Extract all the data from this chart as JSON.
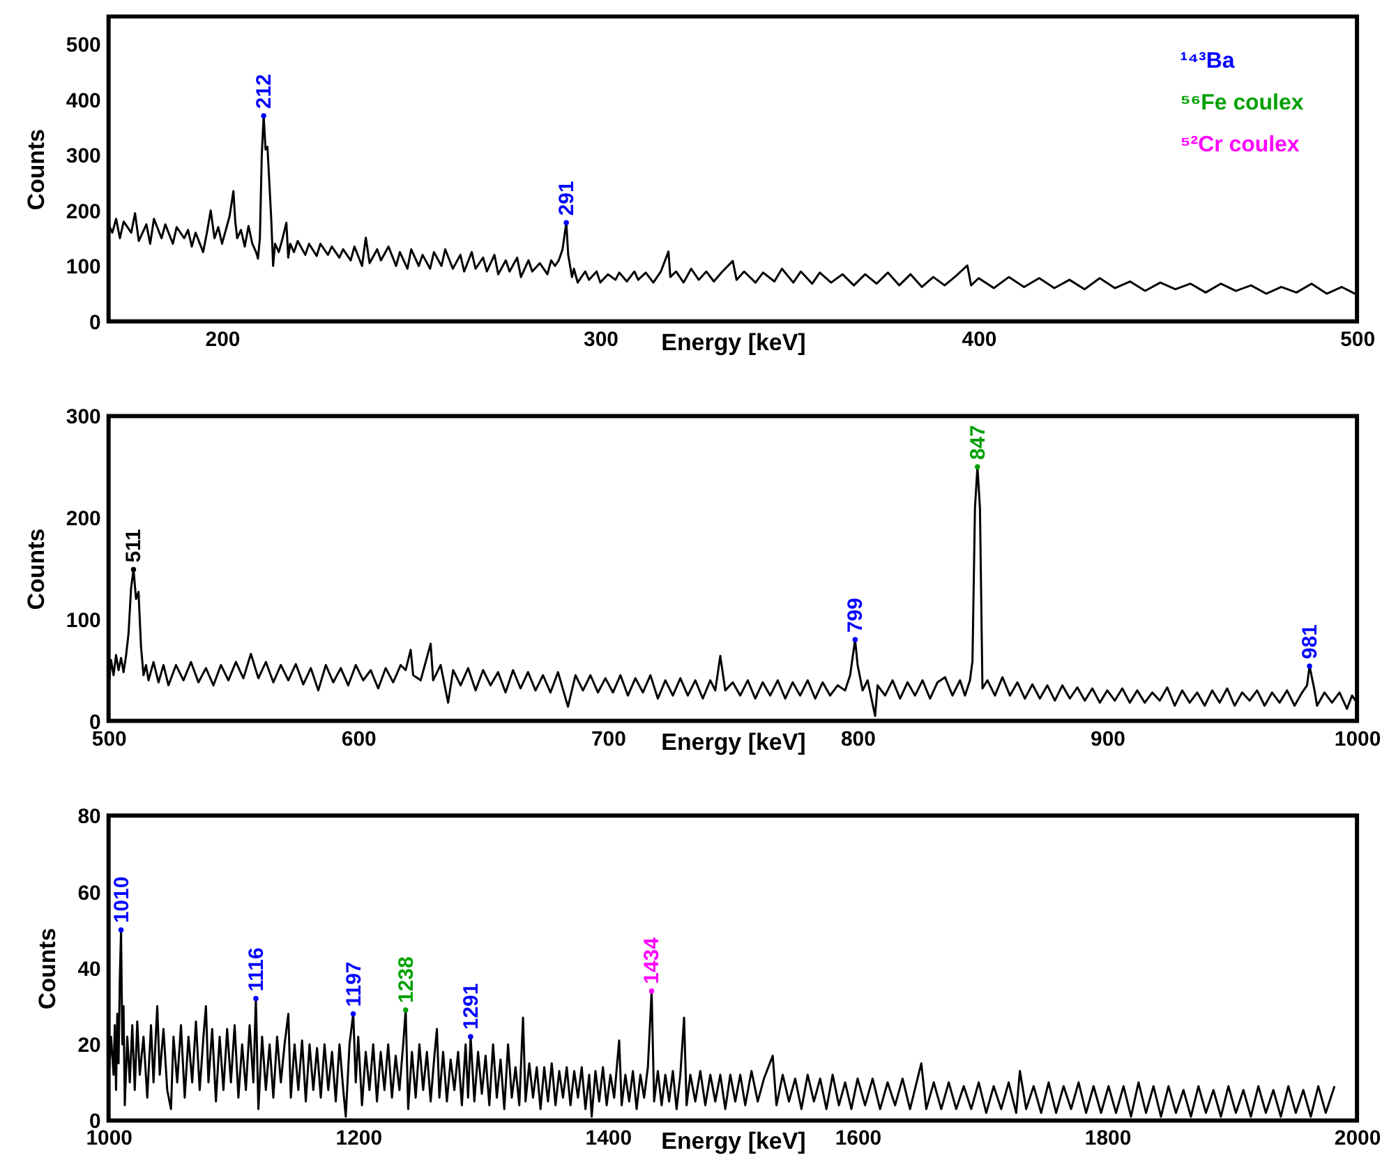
{
  "chart_data": [
    {
      "type": "line",
      "xlabel": "Energy [keV]",
      "ylabel": "Counts",
      "xlim": [
        170,
        500
      ],
      "ylim": [
        0,
        550
      ],
      "xticks": [
        200,
        300,
        400,
        500
      ],
      "yticks": [
        0,
        100,
        200,
        300,
        400,
        500
      ],
      "series": [
        {
          "color": "#000000",
          "x": [
            170,
            171,
            172,
            173,
            174,
            176,
            177,
            178,
            180,
            181,
            182,
            184,
            185,
            187,
            188,
            190,
            191,
            192,
            193,
            195,
            196,
            197,
            198,
            199,
            200,
            201,
            202,
            203,
            203.5,
            204,
            205,
            206,
            207,
            208,
            209,
            209.5,
            210,
            210.5,
            211,
            211.5,
            212,
            213,
            213.5,
            214,
            215,
            216,
            217,
            217.5,
            218,
            219,
            220,
            222,
            223,
            225,
            226,
            228,
            229,
            231,
            232,
            234,
            235,
            237,
            238,
            239,
            241,
            242,
            244,
            246,
            247,
            249,
            250,
            252,
            253,
            255,
            256,
            258,
            259,
            261,
            263,
            264,
            266,
            267,
            269,
            270,
            272,
            273,
            275,
            276,
            278,
            279,
            281,
            282,
            284,
            286,
            287,
            288,
            289,
            290,
            291,
            291.5,
            292.5,
            293,
            294,
            296,
            297,
            299,
            300,
            302,
            304,
            305,
            307,
            309,
            310,
            312,
            314,
            316,
            318,
            318.5,
            320,
            322,
            324,
            326,
            328,
            330,
            332,
            335,
            336,
            338,
            341,
            343,
            346,
            348,
            351,
            353,
            356,
            358,
            361,
            364,
            367,
            370,
            373,
            376,
            379,
            382,
            385,
            388,
            391,
            394,
            397,
            398,
            400,
            404,
            408,
            412,
            416,
            420,
            424,
            428,
            432,
            436,
            440,
            444,
            448,
            452,
            456,
            460,
            464,
            468,
            472,
            476,
            480,
            484,
            488,
            492,
            496,
            500
          ],
          "values": [
            175,
            160,
            185,
            150,
            180,
            160,
            195,
            145,
            175,
            140,
            185,
            150,
            175,
            140,
            170,
            150,
            165,
            135,
            160,
            125,
            160,
            200,
            150,
            170,
            140,
            165,
            190,
            235,
            180,
            150,
            165,
            135,
            172,
            140,
            125,
            113,
            150,
            300,
            371,
            310,
            315,
            185,
            100,
            140,
            125,
            150,
            178,
            115,
            140,
            125,
            145,
            120,
            140,
            118,
            140,
            120,
            135,
            115,
            130,
            110,
            135,
            100,
            151,
            105,
            130,
            110,
            135,
            100,
            125,
            95,
            130,
            100,
            120,
            95,
            125,
            100,
            130,
            95,
            120,
            90,
            125,
            95,
            115,
            90,
            120,
            85,
            110,
            90,
            115,
            80,
            110,
            90,
            105,
            85,
            110,
            100,
            110,
            130,
            178,
            120,
            80,
            95,
            70,
            90,
            75,
            90,
            70,
            85,
            75,
            88,
            72,
            90,
            75,
            88,
            70,
            90,
            126,
            80,
            90,
            70,
            95,
            75,
            90,
            72,
            88,
            109,
            75,
            90,
            70,
            88,
            72,
            95,
            70,
            90,
            68,
            88,
            70,
            85,
            65,
            85,
            68,
            88,
            65,
            85,
            62,
            80,
            65,
            82,
            101,
            65,
            78,
            60,
            80,
            62,
            78,
            60,
            75,
            58,
            78,
            60,
            72,
            55,
            70,
            58,
            68,
            52,
            68,
            55,
            65,
            50,
            62,
            52,
            68,
            50,
            62,
            48
          ]
        },
        {
          "name": "¹⁴³Ba",
          "type": "scatter",
          "marker": "circle",
          "color": "#0000ff",
          "x": [
            211,
            291
          ],
          "values": [
            371,
            178
          ]
        },
        {
          "name": "⁵⁶Fe coulex",
          "type": "scatter",
          "marker": "circle",
          "color": "#00a000"
        },
        {
          "name": "⁵²Cr coulex",
          "type": "scatter",
          "marker": "circle",
          "color": "#ff00ff"
        }
      ],
      "annotations": [
        {
          "text": "212",
          "x": 211,
          "y": 371
        },
        {
          "text": "291",
          "x": 291,
          "y": 178
        }
      ]
    },
    {
      "type": "line",
      "xlabel": "Energy [keV]",
      "ylabel": "Counts",
      "xlim": [
        500,
        1000
      ],
      "ylim": [
        0,
        300
      ],
      "xticks": [
        500,
        600,
        700,
        800,
        900,
        1000
      ],
      "yticks": [
        0,
        100,
        200,
        300
      ],
      "series": [
        {
          "color": "#000000",
          "x": [
            500,
            501,
            502,
            503,
            504,
            505,
            506,
            507,
            508,
            509,
            510,
            511,
            512,
            513,
            514,
            515,
            516,
            518,
            520,
            522,
            524,
            527,
            530,
            533,
            536,
            539,
            542,
            545,
            548,
            551,
            554,
            557,
            560,
            563,
            566,
            569,
            572,
            575,
            578,
            581,
            584,
            587,
            590,
            593,
            596,
            599,
            602,
            605,
            608,
            611,
            614,
            617,
            619,
            621,
            622,
            625,
            629,
            630,
            633,
            636,
            638,
            641,
            644,
            647,
            650,
            653,
            656,
            659,
            662,
            665,
            668,
            671,
            674,
            677,
            680,
            684,
            687,
            690,
            693,
            696,
            699,
            702,
            705,
            708,
            711,
            714,
            717,
            720,
            723,
            726,
            729,
            732,
            735,
            738,
            741,
            743,
            745,
            747,
            750,
            753,
            756,
            759,
            762,
            765,
            768,
            771,
            774,
            777,
            780,
            783,
            786,
            789,
            792,
            795,
            797,
            799,
            800,
            802,
            804,
            807,
            808,
            811,
            814,
            817,
            820,
            823,
            826,
            829,
            832,
            835,
            838,
            841,
            843,
            845,
            846,
            847,
            848,
            849,
            850,
            852,
            855,
            858,
            861,
            864,
            867,
            870,
            873,
            876,
            879,
            882,
            885,
            888,
            891,
            894,
            897,
            900,
            903,
            906,
            909,
            912,
            915,
            918,
            921,
            924,
            927,
            930,
            933,
            936,
            939,
            942,
            945,
            948,
            951,
            954,
            957,
            960,
            963,
            966,
            969,
            972,
            975,
            978,
            980,
            981,
            983,
            984,
            987,
            990,
            993,
            996,
            998,
            1000
          ],
          "values": [
            32,
            60,
            45,
            65,
            50,
            62,
            48,
            64,
            86,
            130,
            149,
            120,
            127,
            73,
            45,
            55,
            40,
            58,
            38,
            55,
            35,
            55,
            40,
            58,
            38,
            52,
            35,
            55,
            40,
            58,
            42,
            66,
            42,
            58,
            38,
            55,
            40,
            56,
            36,
            52,
            30,
            55,
            38,
            52,
            35,
            55,
            40,
            50,
            32,
            52,
            38,
            55,
            50,
            70,
            45,
            40,
            76,
            40,
            55,
            18,
            50,
            35,
            52,
            30,
            50,
            35,
            48,
            28,
            50,
            32,
            48,
            30,
            45,
            28,
            48,
            14,
            45,
            30,
            45,
            28,
            42,
            28,
            45,
            25,
            42,
            28,
            45,
            22,
            40,
            25,
            42,
            25,
            40,
            22,
            40,
            30,
            64,
            30,
            38,
            25,
            40,
            22,
            38,
            25,
            40,
            22,
            38,
            25,
            40,
            22,
            38,
            25,
            35,
            30,
            45,
            80,
            55,
            30,
            40,
            5,
            35,
            25,
            40,
            22,
            38,
            25,
            40,
            22,
            38,
            43,
            25,
            40,
            25,
            40,
            59,
            210,
            250,
            209,
            32,
            40,
            25,
            43,
            25,
            38,
            22,
            36,
            22,
            35,
            20,
            35,
            22,
            33,
            20,
            32,
            18,
            30,
            20,
            32,
            18,
            30,
            18,
            28,
            20,
            33,
            15,
            30,
            18,
            28,
            15,
            30,
            18,
            32,
            15,
            28,
            20,
            30,
            15,
            28,
            18,
            30,
            15,
            28,
            35,
            54,
            30,
            15,
            28,
            18,
            28,
            12,
            25,
            18
          ]
        },
        {
          "type": "scatter",
          "marker": "circle",
          "color": "#000000",
          "x": [
            510
          ],
          "values": [
            149
          ]
        },
        {
          "type": "scatter",
          "marker": "circle",
          "color": "#0000ff",
          "x": [
            799,
            981
          ],
          "values": [
            80,
            54
          ]
        },
        {
          "type": "scatter",
          "marker": "circle",
          "color": "#00a000",
          "x": [
            848
          ],
          "values": [
            250
          ]
        }
      ],
      "annotations": [
        {
          "text": "511",
          "x": 510,
          "y": 149
        },
        {
          "text": "799",
          "x": 799,
          "y": 80
        },
        {
          "text": "847",
          "x": 848,
          "y": 250
        },
        {
          "text": "981",
          "x": 981,
          "y": 54
        }
      ]
    },
    {
      "type": "line",
      "xlabel": "Energy [keV]",
      "ylabel": "Counts",
      "xlim": [
        1000,
        2000
      ],
      "ylim": [
        0,
        80
      ],
      "xticks": [
        1000,
        1200,
        1400,
        1600,
        1800,
        2000
      ],
      "yticks": [
        0,
        20,
        40,
        60,
        80
      ],
      "series": [
        {
          "color": "#000000",
          "x": [
            1000,
            1002,
            1004,
            1005,
            1006,
            1007,
            1008,
            1009,
            1010,
            1011,
            1012,
            1013,
            1015,
            1017,
            1019,
            1021,
            1023,
            1025,
            1028,
            1031,
            1034,
            1036,
            1039,
            1041,
            1044,
            1047,
            1050,
            1052,
            1055,
            1058,
            1061,
            1064,
            1067,
            1070,
            1073,
            1076,
            1078,
            1080,
            1083,
            1086,
            1089,
            1092,
            1095,
            1098,
            1101,
            1104,
            1107,
            1110,
            1113,
            1116,
            1118,
            1120,
            1123,
            1126,
            1129,
            1132,
            1135,
            1138,
            1141,
            1144,
            1146,
            1149,
            1152,
            1155,
            1158,
            1161,
            1164,
            1167,
            1170,
            1173,
            1176,
            1179,
            1182,
            1185,
            1188,
            1190,
            1193,
            1196,
            1198,
            1200,
            1203,
            1206,
            1209,
            1212,
            1215,
            1218,
            1221,
            1224,
            1227,
            1230,
            1233,
            1236,
            1238,
            1240,
            1243,
            1246,
            1249,
            1252,
            1255,
            1258,
            1261,
            1263,
            1265,
            1268,
            1271,
            1274,
            1277,
            1280,
            1283,
            1286,
            1288,
            1290,
            1293,
            1296,
            1299,
            1302,
            1305,
            1308,
            1311,
            1314,
            1317,
            1320,
            1323,
            1326,
            1329,
            1332,
            1334,
            1337,
            1340,
            1343,
            1346,
            1349,
            1352,
            1355,
            1358,
            1361,
            1364,
            1367,
            1370,
            1373,
            1376,
            1379,
            1382,
            1385,
            1387,
            1390,
            1393,
            1396,
            1399,
            1402,
            1405,
            1409,
            1411,
            1414,
            1417,
            1420,
            1423,
            1426,
            1429,
            1432,
            1435,
            1437,
            1440,
            1443,
            1446,
            1449,
            1452,
            1455,
            1458,
            1461,
            1463,
            1466,
            1470,
            1474,
            1478,
            1482,
            1486,
            1490,
            1494,
            1498,
            1502,
            1506,
            1510,
            1515,
            1520,
            1525,
            1532,
            1535,
            1540,
            1545,
            1550,
            1555,
            1560,
            1565,
            1570,
            1575,
            1580,
            1585,
            1590,
            1595,
            1600,
            1606,
            1612,
            1618,
            1624,
            1630,
            1636,
            1642,
            1651,
            1655,
            1661,
            1667,
            1673,
            1679,
            1685,
            1691,
            1697,
            1703,
            1709,
            1715,
            1721,
            1727,
            1730,
            1735,
            1741,
            1747,
            1753,
            1759,
            1765,
            1771,
            1777,
            1783,
            1789,
            1795,
            1801,
            1807,
            1813,
            1819,
            1825,
            1831,
            1837,
            1843,
            1849,
            1855,
            1861,
            1867,
            1873,
            1879,
            1885,
            1891,
            1897,
            1903,
            1909,
            1915,
            1921,
            1927,
            1933,
            1939,
            1945,
            1951,
            1957,
            1963,
            1969,
            1975,
            1982
          ],
          "values": [
            10,
            22,
            12,
            25,
            8,
            28,
            15,
            37,
            50,
            20,
            30,
            4,
            22,
            10,
            25,
            8,
            26,
            12,
            22,
            6,
            25,
            10,
            30,
            12,
            24,
            8,
            3,
            22,
            10,
            25,
            6,
            22,
            10,
            26,
            8,
            22,
            30,
            10,
            24,
            5,
            22,
            8,
            24,
            10,
            25,
            6,
            20,
            8,
            25,
            10,
            32,
            3,
            22,
            8,
            20,
            6,
            22,
            10,
            20,
            28,
            6,
            20,
            8,
            21,
            5,
            20,
            8,
            19,
            6,
            20,
            8,
            18,
            5,
            20,
            8,
            1,
            20,
            28,
            10,
            22,
            4,
            18,
            8,
            20,
            5,
            18,
            8,
            20,
            6,
            17,
            8,
            20,
            29,
            3,
            18,
            6,
            20,
            8,
            18,
            5,
            17,
            24,
            6,
            18,
            5,
            16,
            8,
            18,
            4,
            20,
            6,
            22,
            5,
            18,
            7,
            17,
            4,
            20,
            6,
            16,
            3,
            20,
            6,
            14,
            4,
            27,
            5,
            15,
            6,
            14,
            3,
            14,
            5,
            15,
            4,
            13,
            6,
            14,
            4,
            13,
            6,
            14,
            3,
            12,
            1,
            13,
            5,
            14,
            4,
            12,
            6,
            21,
            4,
            12,
            5,
            13,
            3,
            12,
            6,
            14,
            34,
            5,
            13,
            4,
            12,
            5,
            13,
            3,
            12,
            27,
            4,
            12,
            5,
            13,
            4,
            12,
            5,
            12,
            3,
            12,
            5,
            12,
            4,
            13,
            5,
            11,
            17,
            4,
            12,
            5,
            11,
            3,
            12,
            5,
            11,
            3,
            12,
            4,
            10,
            3,
            11,
            4,
            11,
            3,
            10,
            4,
            11,
            3,
            15,
            3,
            10,
            3,
            10,
            3,
            9,
            3,
            10,
            2,
            9,
            3,
            10,
            2,
            13,
            3,
            9,
            2,
            10,
            2,
            9,
            3,
            10,
            2,
            9,
            2,
            9,
            2,
            9,
            1,
            10,
            2,
            9,
            1,
            9,
            2,
            8,
            1,
            9,
            2,
            8,
            1,
            9,
            2,
            8,
            1,
            9,
            2,
            8,
            1,
            9,
            2,
            8,
            1,
            9,
            2,
            9
          ]
        },
        {
          "type": "scatter",
          "marker": "circle",
          "color": "#0000ff",
          "x": [
            1010,
            1118,
            1196,
            1290
          ],
          "values": [
            50,
            32,
            28,
            22
          ]
        },
        {
          "type": "scatter",
          "marker": "circle",
          "color": "#00a000",
          "x": [
            1238
          ],
          "values": [
            29
          ]
        },
        {
          "type": "scatter",
          "marker": "circle",
          "color": "#ff00ff",
          "x": [
            1435
          ],
          "values": [
            34
          ]
        }
      ],
      "annotations": [
        {
          "text": "1010",
          "x": 1010,
          "y": 50
        },
        {
          "text": "1116",
          "x": 1118,
          "y": 32
        },
        {
          "text": "1197",
          "x": 1196,
          "y": 28
        },
        {
          "text": "1238",
          "x": 1238,
          "y": 29
        },
        {
          "text": "1291",
          "x": 1290,
          "y": 22
        },
        {
          "text": "1434",
          "x": 1435,
          "y": 34
        }
      ]
    }
  ]
}
